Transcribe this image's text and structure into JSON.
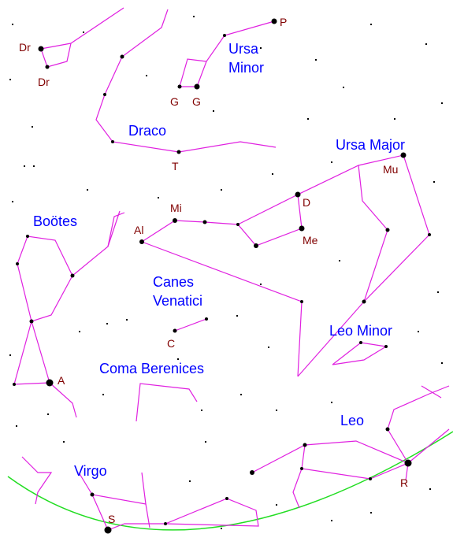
{
  "constellations": [
    {
      "lines": [
        "Ursa",
        "Minor"
      ]
    },
    {
      "lines": [
        "Draco"
      ]
    },
    {
      "lines": [
        "Ursa Major"
      ]
    },
    {
      "lines": [
        "Boötes"
      ]
    },
    {
      "lines": [
        "Canes",
        "Venatici"
      ]
    },
    {
      "lines": [
        "Leo Minor"
      ]
    },
    {
      "lines": [
        "Coma Berenices"
      ]
    },
    {
      "lines": [
        "Leo"
      ]
    },
    {
      "lines": [
        "Virgo"
      ]
    }
  ],
  "star_labels": [
    "Dr",
    "Dr",
    "P",
    "G",
    "G",
    "T",
    "D",
    "Mu",
    "Me",
    "Mi",
    "Al",
    "C",
    "A",
    "R",
    "S"
  ]
}
